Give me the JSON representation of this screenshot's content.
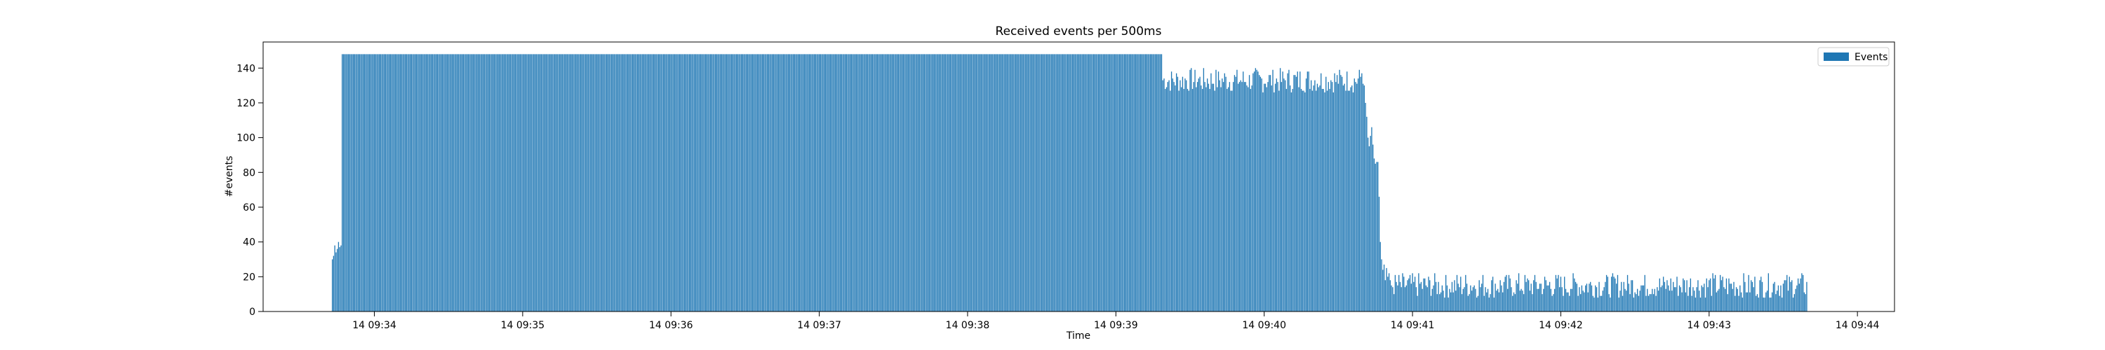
{
  "chart_data": {
    "type": "bar",
    "title": "Received events per 500ms",
    "xlabel": "Time",
    "ylabel": "#events",
    "legend": {
      "label": "Events",
      "position": "upper-right"
    },
    "bar_color": "#1f77b4",
    "grid": false,
    "bin_seconds": 0.5,
    "x_start": "14 09:33:43.0",
    "ylim": [
      0,
      155
    ],
    "xlim": [
      "14 09:33:15",
      "14 09:44:15"
    ],
    "y_ticks": [
      0,
      20,
      40,
      60,
      80,
      100,
      120,
      140
    ],
    "x_ticks": [
      "14 09:34",
      "14 09:35",
      "14 09:36",
      "14 09:37",
      "14 09:38",
      "14 09:39",
      "14 09:40",
      "14 09:41",
      "14 09:42",
      "14 09:43",
      "14 09:44"
    ],
    "segments": [
      {
        "from": "14 09:33:43.0",
        "values": [
          30,
          32,
          38,
          34,
          36,
          40,
          37,
          38
        ]
      },
      {
        "from": "14 09:33:47.0",
        "to": "14 09:39:18.5",
        "constant": 148
      },
      {
        "from": "14 09:39:19.0",
        "to": "14 09:40:38.5",
        "approx_range": [
          126,
          140
        ]
      },
      {
        "from": "14 09:40:39.0",
        "values": [
          135,
          137,
          131,
          130,
          120,
          112,
          100,
          95,
          101,
          106,
          96,
          88,
          85,
          86,
          86,
          66,
          40,
          30,
          24,
          27,
          18,
          25,
          20,
          22,
          18
        ]
      },
      {
        "from": "14 09:40:51.5",
        "to": "14 09:43:39.5",
        "approx_range": [
          8,
          22
        ]
      }
    ]
  }
}
